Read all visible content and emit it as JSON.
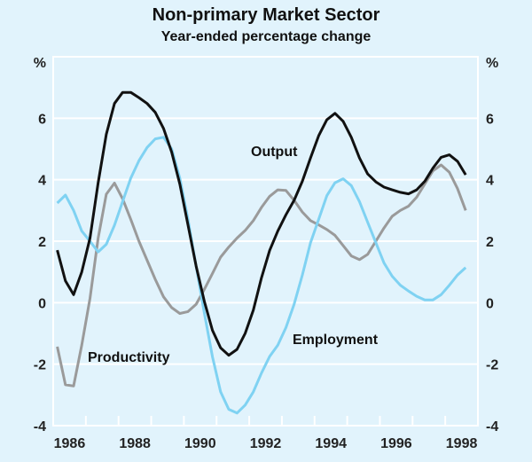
{
  "title": "Non-primary Market Sector",
  "subtitle": "Year-ended percentage change",
  "chart_data": {
    "type": "line",
    "title": "Non-primary Market Sector",
    "subtitle": "Year-ended percentage change",
    "ylabel_left": "%",
    "ylabel_right": "%",
    "ylim": [
      -4,
      8
    ],
    "xlim": [
      1985.5,
      1998.5
    ],
    "yticks": [
      -4,
      -2,
      0,
      2,
      4,
      6
    ],
    "xtick_labels": [
      "1986",
      "1988",
      "1990",
      "1992",
      "1994",
      "1996",
      "1998"
    ],
    "grid": true,
    "x_start": 1985.625,
    "x_step": 0.25,
    "series": [
      {
        "name": "Output",
        "color": "#111111",
        "values": [
          1.71,
          0.71,
          0.26,
          1.0,
          2.1,
          3.9,
          5.48,
          6.48,
          6.84,
          6.84,
          6.67,
          6.48,
          6.19,
          5.67,
          4.9,
          3.86,
          2.53,
          1.19,
          0.05,
          -0.9,
          -1.47,
          -1.71,
          -1.52,
          -1.0,
          -0.24,
          0.81,
          1.7,
          2.33,
          2.86,
          3.33,
          3.95,
          4.71,
          5.43,
          5.95,
          6.16,
          5.9,
          5.38,
          4.71,
          4.19,
          3.93,
          3.76,
          3.67,
          3.59,
          3.54,
          3.67,
          3.95,
          4.38,
          4.73,
          4.81,
          4.6,
          4.16
        ]
      },
      {
        "name": "Productivity",
        "color": "#9a9a9a",
        "values": [
          -1.43,
          -2.67,
          -2.71,
          -1.38,
          0.14,
          2.1,
          3.53,
          3.89,
          3.38,
          2.71,
          2.0,
          1.38,
          0.76,
          0.19,
          -0.16,
          -0.35,
          -0.29,
          -0.05,
          0.43,
          0.95,
          1.48,
          1.81,
          2.1,
          2.35,
          2.67,
          3.1,
          3.46,
          3.67,
          3.65,
          3.33,
          2.95,
          2.67,
          2.53,
          2.38,
          2.19,
          1.86,
          1.52,
          1.4,
          1.57,
          2.0,
          2.43,
          2.81,
          3.0,
          3.14,
          3.43,
          3.86,
          4.29,
          4.48,
          4.24,
          3.71,
          3.0
        ]
      },
      {
        "name": "Employment",
        "color": "#7fd2f2",
        "values": [
          3.24,
          3.5,
          3.0,
          2.33,
          2.0,
          1.65,
          1.9,
          2.52,
          3.29,
          4.05,
          4.62,
          5.05,
          5.33,
          5.38,
          5.0,
          4.05,
          2.71,
          1.19,
          -0.33,
          -1.76,
          -2.9,
          -3.47,
          -3.59,
          -3.33,
          -2.9,
          -2.29,
          -1.75,
          -1.38,
          -0.81,
          -0.05,
          0.9,
          1.95,
          2.71,
          3.48,
          3.9,
          4.03,
          3.81,
          3.29,
          2.62,
          1.95,
          1.29,
          0.86,
          0.57,
          0.38,
          0.21,
          0.09,
          0.09,
          0.26,
          0.57,
          0.9,
          1.14
        ]
      }
    ]
  }
}
